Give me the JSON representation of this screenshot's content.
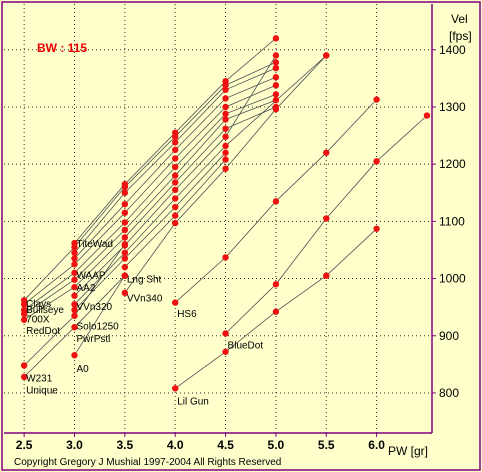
{
  "chart_data": {
    "type": "scatter",
    "annotation": "BW : 115",
    "xlabel": "PW [gr]",
    "ylabel_line1": "Vel",
    "ylabel_line2": "[fps]",
    "xlim": [
      2.3,
      6.55
    ],
    "ylim": [
      730,
      1480
    ],
    "x_ticks": [
      2.5,
      3.0,
      3.5,
      4.0,
      4.5,
      5.0,
      5.5,
      6.0
    ],
    "x_tick_labels": [
      "2.5",
      "3.0",
      "3.5",
      "4.0",
      "4.5",
      "5.0",
      "5.5",
      "6.0"
    ],
    "y_ticks": [
      800,
      900,
      1000,
      1100,
      1200,
      1300,
      1400
    ],
    "y_tick_labels": [
      "800",
      "900",
      "1000",
      "1100",
      "1200",
      "1300",
      "1400"
    ],
    "grid": true,
    "colors": {
      "background": "#ffffcc",
      "line": "#505050",
      "marker": "#ee1111",
      "annotation": "#ee0000",
      "axis": "#800080"
    },
    "series": [
      {
        "name": "TiteWad",
        "points": [
          [
            3.0,
            1062
          ],
          [
            3.5,
            1165
          ],
          [
            4.0,
            1255
          ],
          [
            4.5,
            1345
          ],
          [
            5.0,
            1420
          ]
        ]
      },
      {
        "name": "",
        "points": [
          [
            2.5,
            962
          ],
          [
            3.0,
            1055
          ],
          [
            3.5,
            1160
          ],
          [
            4.0,
            1248
          ],
          [
            4.5,
            1338
          ],
          [
            5.0,
            1378
          ]
        ]
      },
      {
        "name": "WAAP",
        "points": [
          [
            3.0,
            1045
          ],
          [
            3.5,
            1150
          ],
          [
            4.0,
            1238
          ],
          [
            4.5,
            1330
          ],
          [
            5.0,
            1368
          ]
        ]
      },
      {
        "name": "AA2",
        "points": [
          [
            3.0,
            1035
          ],
          [
            3.5,
            1130
          ],
          [
            4.0,
            1225
          ],
          [
            4.5,
            1315
          ],
          [
            5.0,
            1352
          ]
        ]
      },
      {
        "name": "Clays",
        "points": [
          [
            2.5,
            955
          ],
          [
            3.0,
            1025
          ],
          [
            3.5,
            1115
          ],
          [
            4.0,
            1210
          ],
          [
            4.5,
            1300
          ],
          [
            5.0,
            1338
          ]
        ]
      },
      {
        "name": "Bullseye",
        "points": [
          [
            2.5,
            945
          ],
          [
            3.0,
            1010
          ],
          [
            3.5,
            1098
          ],
          [
            4.0,
            1195
          ],
          [
            4.5,
            1288
          ],
          [
            5.0,
            1322
          ]
        ]
      },
      {
        "name": "700X",
        "points": [
          [
            2.5,
            938
          ],
          [
            3.0,
            998
          ],
          [
            3.5,
            1085
          ],
          [
            4.0,
            1180
          ],
          [
            4.5,
            1278
          ],
          [
            5.0,
            1312
          ]
        ]
      },
      {
        "name": "RedDot",
        "points": [
          [
            2.5,
            928
          ],
          [
            3.0,
            985
          ],
          [
            3.5,
            1072
          ],
          [
            4.0,
            1168
          ],
          [
            4.5,
            1262
          ],
          [
            5.0,
            1300
          ]
        ]
      },
      {
        "name": "VVn320",
        "points": [
          [
            3.0,
            970
          ],
          [
            3.5,
            1058
          ],
          [
            4.0,
            1155
          ],
          [
            4.5,
            1248
          ],
          [
            5.0,
            1390
          ]
        ]
      },
      {
        "name": "Solo1250",
        "points": [
          [
            3.0,
            955
          ],
          [
            3.5,
            1045
          ],
          [
            4.0,
            1140
          ],
          [
            4.5,
            1232
          ],
          [
            5.5,
            1390
          ]
        ]
      },
      {
        "name": "PwrPstl",
        "points": [
          [
            3.0,
            945
          ],
          [
            3.5,
            1035
          ],
          [
            4.0,
            1125
          ],
          [
            4.5,
            1220
          ]
        ]
      },
      {
        "name": "LngSht",
        "points": [
          [
            3.5,
            1020
          ],
          [
            4.0,
            1110
          ],
          [
            4.5,
            1208
          ]
        ]
      },
      {
        "name": "VVn340",
        "points": [
          [
            3.5,
            975
          ],
          [
            4.0,
            1097
          ],
          [
            4.5,
            1192
          ],
          [
            5.0,
            1296
          ],
          [
            5.5,
            1390
          ]
        ]
      },
      {
        "name": "W231",
        "points": [
          [
            2.5,
            848
          ],
          [
            3.0,
            935
          ],
          [
            3.5,
            1060
          ]
        ]
      },
      {
        "name": "Unique",
        "points": [
          [
            2.5,
            828
          ],
          [
            3.0,
            915
          ],
          [
            3.5,
            1005
          ]
        ]
      },
      {
        "name": "A0",
        "points": [
          [
            3.0,
            866
          ],
          [
            3.5,
            1005
          ]
        ]
      },
      {
        "name": "HS6",
        "points": [
          [
            4.0,
            958
          ],
          [
            4.5,
            1037
          ],
          [
            5.0,
            1135
          ],
          [
            5.5,
            1220
          ],
          [
            6.0,
            1313
          ]
        ]
      },
      {
        "name": "BlueDot",
        "points": [
          [
            4.5,
            904
          ],
          [
            5.0,
            990
          ],
          [
            5.5,
            1105
          ],
          [
            6.0,
            1205
          ],
          [
            6.5,
            1285
          ]
        ]
      },
      {
        "name": "LilGun",
        "points": [
          [
            4.0,
            808
          ],
          [
            4.5,
            872
          ],
          [
            5.0,
            942
          ],
          [
            5.5,
            1005
          ],
          [
            6.0,
            1087
          ]
        ]
      }
    ],
    "labels": [
      {
        "text": "TiteWad",
        "x": 3.0,
        "y": 1062
      },
      {
        "text": "WAAP",
        "x": 3.0,
        "y": 1007
      },
      {
        "text": "AA2",
        "x": 3.0,
        "y": 985
      },
      {
        "text": "Lng Sht",
        "x": 3.5,
        "y": 1000
      },
      {
        "text": "Clays",
        "x": 2.5,
        "y": 957
      },
      {
        "text": "Bullseye",
        "x": 2.5,
        "y": 947
      },
      {
        "text": "700X",
        "x": 2.5,
        "y": 930
      },
      {
        "text": "RedDot",
        "x": 2.5,
        "y": 910
      },
      {
        "text": "VVn320",
        "x": 3.0,
        "y": 952
      },
      {
        "text": "VVn340",
        "x": 3.5,
        "y": 967
      },
      {
        "text": "Solo1250",
        "x": 3.0,
        "y": 918
      },
      {
        "text": "PwrPstl",
        "x": 3.0,
        "y": 896
      },
      {
        "text": "HS6",
        "x": 4.0,
        "y": 940
      },
      {
        "text": "BlueDot",
        "x": 4.5,
        "y": 885
      },
      {
        "text": "W231",
        "x": 2.5,
        "y": 827
      },
      {
        "text": "Unique",
        "x": 2.5,
        "y": 806
      },
      {
        "text": "A0",
        "x": 3.0,
        "y": 844
      },
      {
        "text": "Lil Gun",
        "x": 4.0,
        "y": 787
      }
    ]
  },
  "footer": {
    "copyright": "Copyright Gregory J  Mushial 1997-2004     All Rights Reserved"
  }
}
